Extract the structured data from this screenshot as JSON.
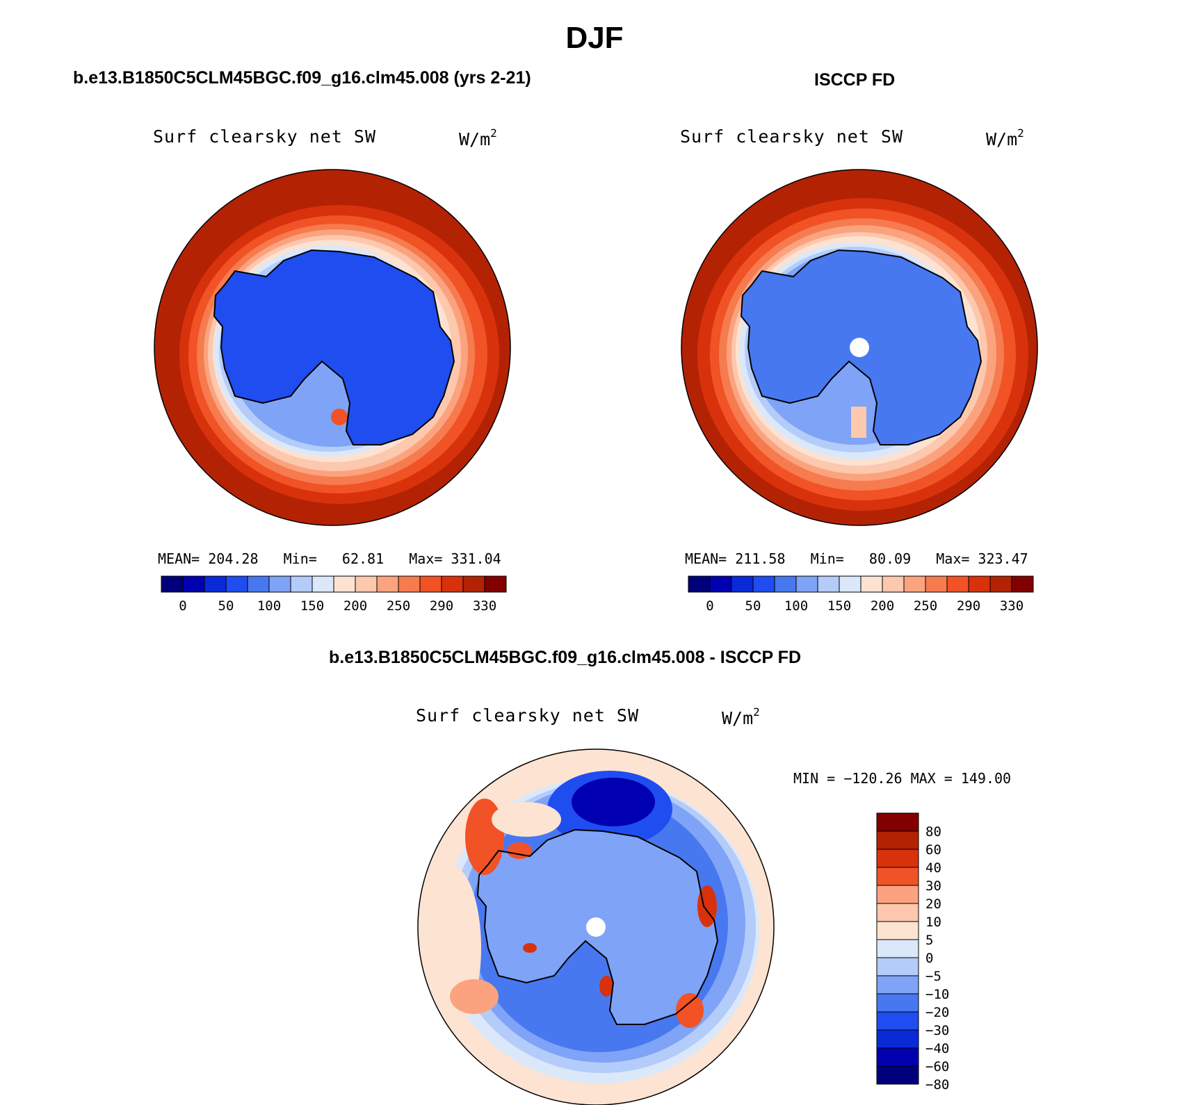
{
  "figure": {
    "title": "DJF",
    "diff_title": "b.e13.B1850C5CLM45BGC.f09_g16.clm45.008 - ISCCP FD"
  },
  "panels": {
    "model": {
      "title": "b.e13.B1850C5CLM45BGC.f09_g16.clm45.008 (yrs 2-21)",
      "variable": "Surf clearsky net SW",
      "units": "W/m",
      "units_exp": "2",
      "stats": "MEAN= 204.28   Min=   62.81   Max= 331.04"
    },
    "obs": {
      "title": "ISCCP FD",
      "variable": "Surf clearsky net SW",
      "units": "W/m",
      "units_exp": "2",
      "stats": "MEAN= 211.58   Min=   80.09   Max= 323.47"
    },
    "diff": {
      "variable": "Surf clearsky net SW",
      "units": "W/m",
      "units_exp": "2",
      "stats": "MIN = −120.26 MAX = 149.00"
    }
  },
  "colorbar_main": {
    "colors": [
      "#00007a",
      "#0000b0",
      "#0a2ad8",
      "#1f4df0",
      "#4878f0",
      "#7fa3f6",
      "#b3ccfa",
      "#dbe8fa",
      "#fde2d2",
      "#fcc8ae",
      "#fba37f",
      "#f67b4e",
      "#f15226",
      "#d8320c",
      "#b42204",
      "#830000"
    ],
    "labels": [
      "0",
      "50",
      "100",
      "150",
      "200",
      "250",
      "290",
      "330"
    ]
  },
  "colorbar_diff": {
    "colors": [
      "#830000",
      "#b42204",
      "#d8320c",
      "#f15226",
      "#fba37f",
      "#fdc8ae",
      "#fde3d2",
      "#dbe8fa",
      "#b3ccfa",
      "#7fa3f6",
      "#4878f0",
      "#1f4df0",
      "#0a2ad8",
      "#0000b0",
      "#00007a"
    ],
    "labels": [
      "80",
      "60",
      "40",
      "30",
      "20",
      "10",
      "5",
      "0",
      "−5",
      "−10",
      "−20",
      "−30",
      "−40",
      "−60",
      "−80"
    ]
  }
}
